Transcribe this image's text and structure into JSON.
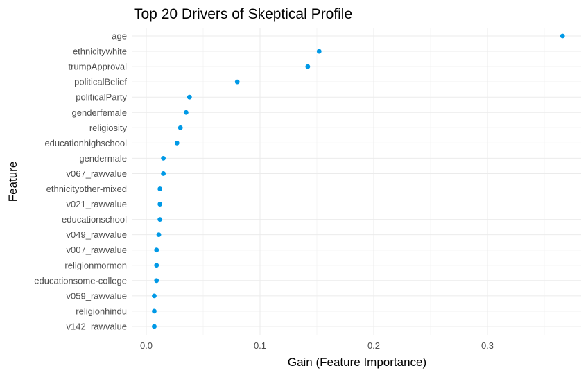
{
  "chart_data": {
    "type": "scatter",
    "title": "Top 20 Drivers of Skeptical Profile",
    "xlabel": "Gain (Feature Importance)",
    "ylabel": "Feature",
    "xlim": [
      -0.015,
      0.38
    ],
    "xticks": [
      0.0,
      0.1,
      0.2,
      0.3
    ],
    "xtick_labels": [
      "0.0",
      "0.1",
      "0.2",
      "0.3"
    ],
    "grid": true,
    "point_color": "#0099e6",
    "categories": [
      "age",
      "ethnicitywhite",
      "trumpApproval",
      "politicalBelief",
      "politicalParty",
      "genderfemale",
      "religiosity",
      "educationhighschool",
      "gendermale",
      "v067_rawvalue",
      "ethnicityother-mixed",
      "v021_rawvalue",
      "educationschool",
      "v049_rawvalue",
      "v007_rawvalue",
      "religionmormon",
      "educationsome-college",
      "v059_rawvalue",
      "religionhindu",
      "v142_rawvalue"
    ],
    "values": [
      0.366,
      0.152,
      0.142,
      0.08,
      0.038,
      0.035,
      0.03,
      0.027,
      0.015,
      0.015,
      0.012,
      0.012,
      0.012,
      0.011,
      0.009,
      0.009,
      0.009,
      0.007,
      0.007,
      0.007
    ]
  }
}
